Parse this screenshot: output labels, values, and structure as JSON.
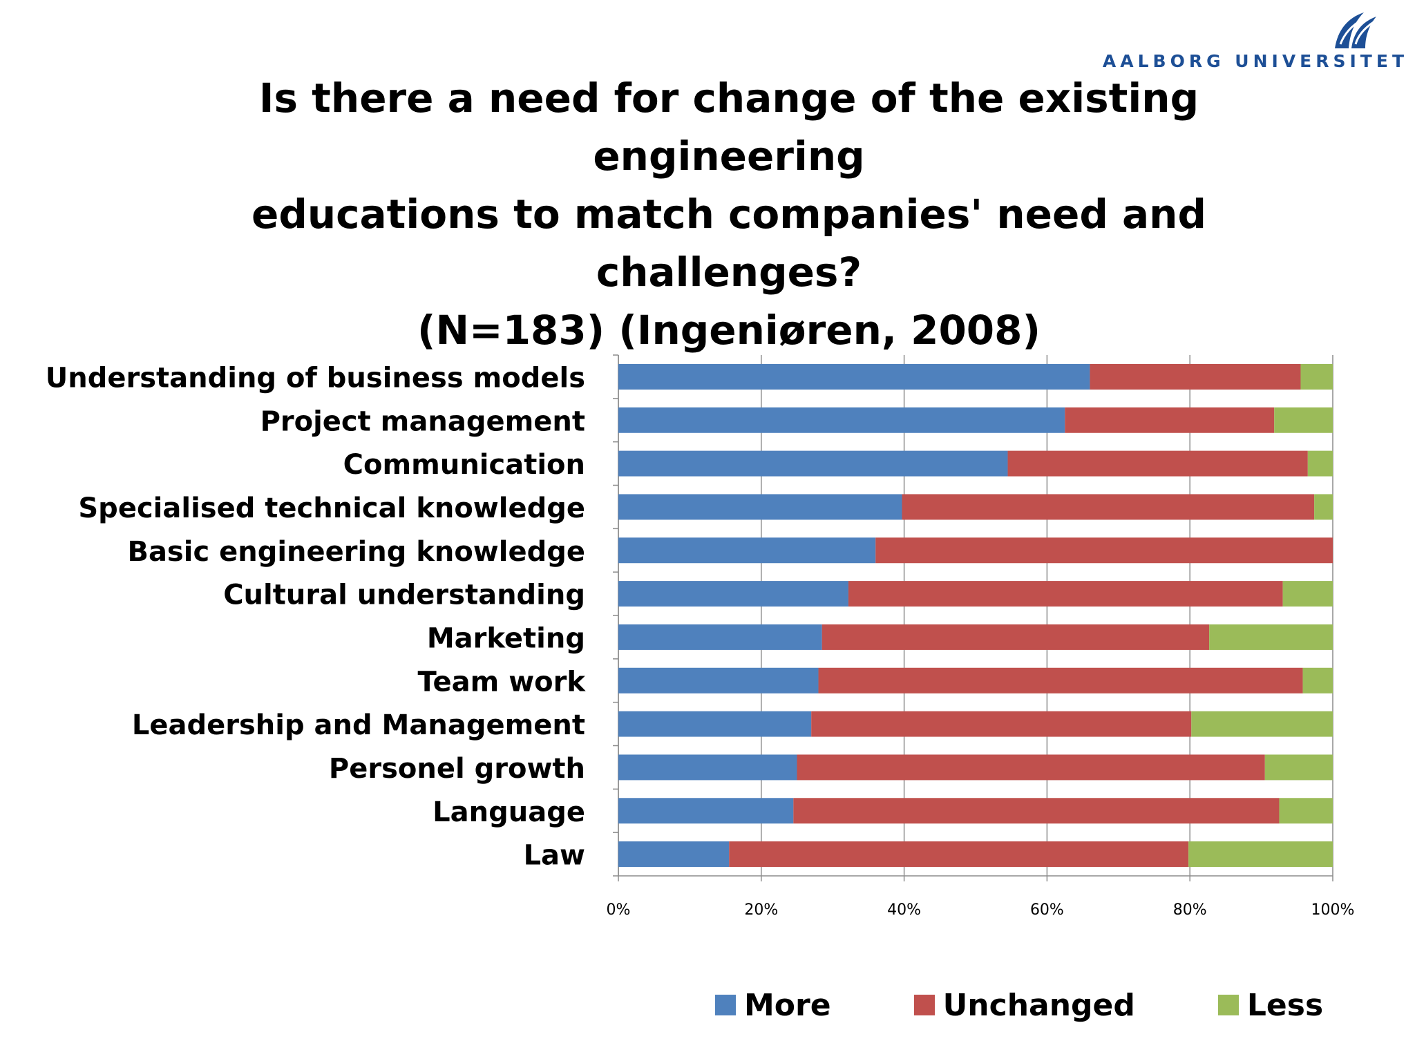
{
  "logo": {
    "text": "AALBORG UNIVERSITET",
    "icon": "aalborg-university-logo-icon",
    "color": "#1d4f96"
  },
  "title": {
    "line1": "Is there a need for change of the existing engineering",
    "line2": "educations to match companies' need and challenges?",
    "line3": "(N=183) (Ingeniøren, 2008)"
  },
  "chart_data": {
    "type": "bar",
    "orientation": "horizontal",
    "stacked": "percent",
    "title": "Is there a need for change of the existing engineering educations to match companies' need and challenges? (N=183) (Ingeniøren, 2008)",
    "categories": [
      "Understanding of business models",
      "Project management",
      "Communication",
      "Specialised technical knowledge",
      "Basic engineering knowledge",
      "Cultural understanding",
      "Marketing",
      "Team work",
      "Leadership and Management",
      "Personel growth",
      "Language",
      "Law"
    ],
    "series": [
      {
        "name": "More",
        "color": "#4f81bd",
        "values": [
          66,
          62.5,
          54.5,
          39.7,
          36,
          32.2,
          28.5,
          28,
          27,
          25,
          24.5,
          15.5
        ]
      },
      {
        "name": "Unchanged",
        "color": "#c0504d",
        "values": [
          29.5,
          29.3,
          42,
          57.7,
          64,
          60.8,
          54.2,
          67.8,
          53.2,
          65.5,
          68,
          64.3
        ]
      },
      {
        "name": "Less",
        "color": "#9bbb59",
        "values": [
          4.5,
          8.2,
          3.5,
          2.6,
          0,
          7,
          17.3,
          4.2,
          19.8,
          9.5,
          7.5,
          20.2
        ]
      }
    ],
    "xlim": [
      0,
      100
    ],
    "xticks": [
      "0%",
      "20%",
      "40%",
      "60%",
      "80%",
      "100%"
    ],
    "xlabel": "",
    "ylabel": "",
    "grid": true,
    "legend_position": "bottom"
  }
}
